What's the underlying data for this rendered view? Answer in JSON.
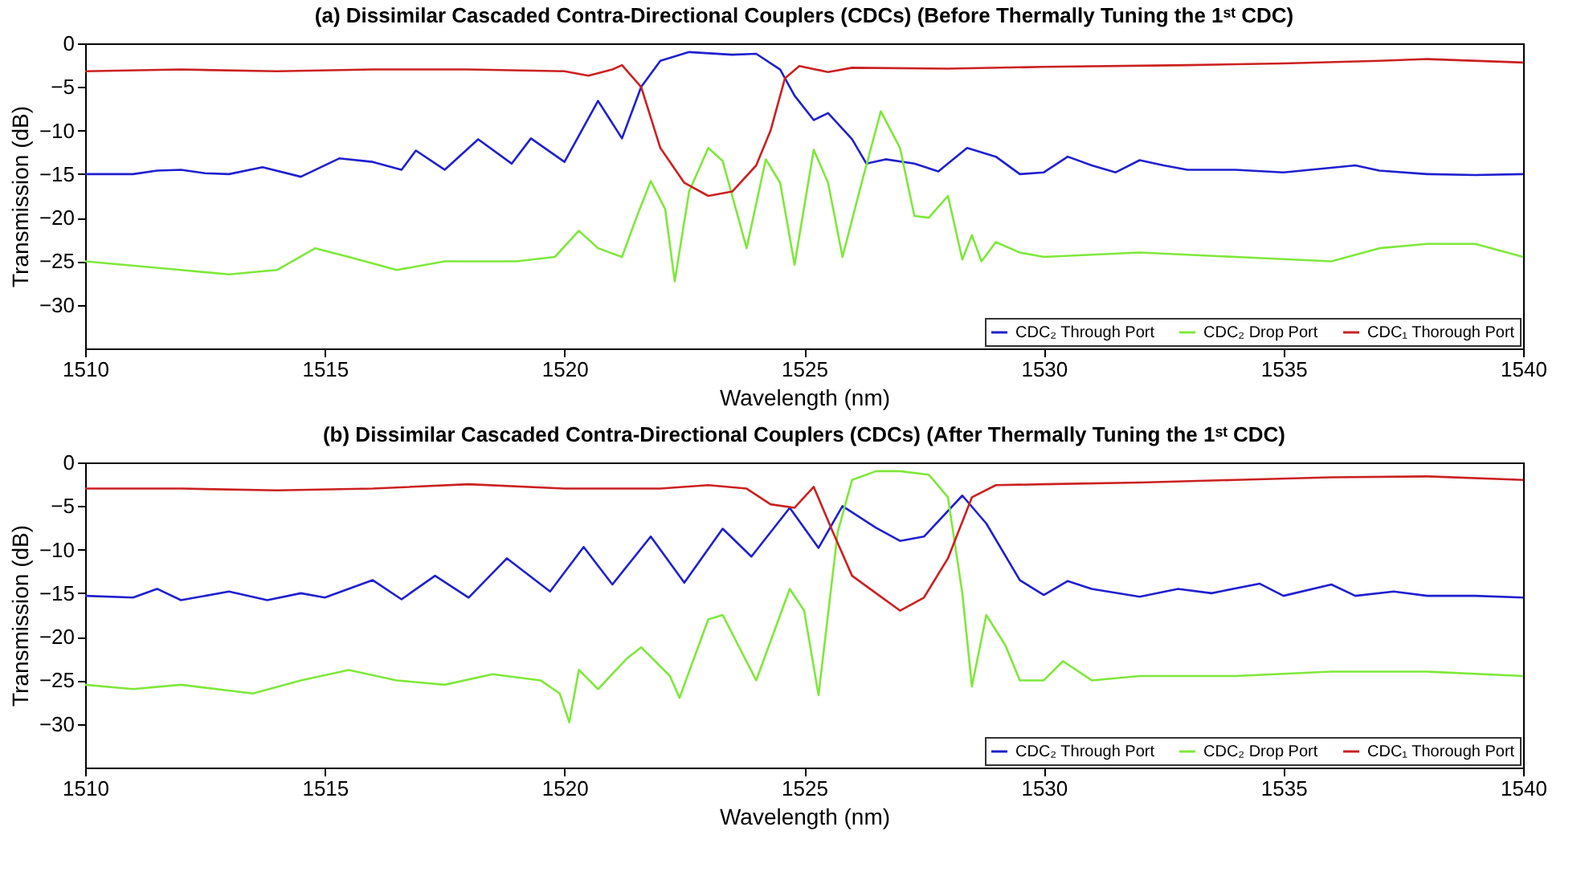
{
  "chart_data": [
    {
      "type": "line",
      "title": "(a) Dissimilar Cascaded Contra-Directional Couplers (CDCs) (Before Thermally Tuning the 1ˢᵗ CDC)",
      "xlabel": "Wavelength (nm)",
      "ylabel": "Transmission (dB)",
      "xlim": [
        1510,
        1540
      ],
      "xticks": [
        1510,
        1515,
        1520,
        1525,
        1530,
        1535,
        1540
      ],
      "ylim": [
        -35,
        0
      ],
      "yticks": [
        -30,
        -25,
        -20,
        -15,
        -10,
        -5,
        0
      ],
      "grid": false,
      "legend": "bottom right",
      "line_style": "solid",
      "marker": "none",
      "series": [
        {
          "name": "CDC₂ Through Port",
          "color": "#1f1fd0",
          "x": [
            1510,
            1511,
            1511.5,
            1512,
            1512.5,
            1513,
            1513.7,
            1514.5,
            1515.3,
            1516,
            1516.6,
            1516.9,
            1517.5,
            1518.2,
            1518.9,
            1519.3,
            1520,
            1520.7,
            1521.2,
            1521.6,
            1522,
            1522.6,
            1523.5,
            1524,
            1524.5,
            1524.8,
            1525.2,
            1525.5,
            1526,
            1526.3,
            1526.7,
            1527.3,
            1527.8,
            1528.4,
            1529,
            1529.5,
            1530,
            1530.5,
            1531,
            1531.5,
            1532,
            1532.5,
            1533,
            1534,
            1535,
            1536.5,
            1537,
            1538,
            1539,
            1540
          ],
          "values": [
            -15,
            -15,
            -14.6,
            -14.5,
            -14.9,
            -15,
            -14.2,
            -15.3,
            -13.2,
            -13.6,
            -14.5,
            -12.3,
            -14.5,
            -11,
            -13.8,
            -10.9,
            -13.6,
            -6.6,
            -10.9,
            -5,
            -2,
            -1,
            -1.3,
            -1.2,
            -3,
            -6,
            -8.8,
            -8,
            -11,
            -13.8,
            -13.3,
            -13.8,
            -14.7,
            -12,
            -13,
            -15,
            -14.8,
            -13,
            -14,
            -14.8,
            -13.4,
            -14,
            -14.5,
            -14.5,
            -14.8,
            -14,
            -14.6,
            -15,
            -15.1,
            -15
          ]
        },
        {
          "name": "CDC₂ Drop Port",
          "color": "#7ee83a",
          "x": [
            1510,
            1512,
            1513,
            1514,
            1514.8,
            1515.5,
            1516.5,
            1517.5,
            1519,
            1519.8,
            1520.3,
            1520.7,
            1521.2,
            1521.5,
            1521.8,
            1522.1,
            1522.3,
            1522.6,
            1523,
            1523.3,
            1523.8,
            1524.2,
            1524.5,
            1524.8,
            1525.2,
            1525.5,
            1525.8,
            1526.2,
            1526.6,
            1527,
            1527.3,
            1527.6,
            1528,
            1528.3,
            1528.5,
            1528.7,
            1529,
            1529.5,
            1530,
            1532,
            1534,
            1536,
            1537,
            1538,
            1539,
            1540
          ],
          "values": [
            -25,
            -26,
            -26.5,
            -26,
            -23.5,
            -24.5,
            -26,
            -25,
            -25,
            -24.5,
            -21.5,
            -23.5,
            -24.5,
            -20,
            -15.8,
            -19,
            -27.3,
            -17,
            -12,
            -13.5,
            -23.5,
            -13.3,
            -16,
            -25.4,
            -12.2,
            -16,
            -24.5,
            -16,
            -7.8,
            -12,
            -19.8,
            -20,
            -17.5,
            -24.8,
            -22,
            -25,
            -22.8,
            -24,
            -24.5,
            -24,
            -24.5,
            -25,
            -23.5,
            -23,
            -23,
            -24.5
          ]
        },
        {
          "name": "CDC₁ Thorough Port",
          "color": "#cc2020",
          "x": [
            1510,
            1512,
            1514,
            1516,
            1518,
            1520,
            1520.5,
            1521,
            1521.2,
            1521.6,
            1522,
            1522.5,
            1523,
            1523.5,
            1524,
            1524.3,
            1524.6,
            1524.9,
            1525.5,
            1526,
            1528,
            1530,
            1533,
            1535,
            1537,
            1538,
            1540
          ],
          "values": [
            -3.2,
            -3,
            -3.2,
            -3,
            -3,
            -3.2,
            -3.7,
            -3,
            -2.5,
            -5,
            -12,
            -16,
            -17.5,
            -17,
            -14,
            -10,
            -4,
            -2.6,
            -3.3,
            -2.8,
            -2.9,
            -2.7,
            -2.5,
            -2.3,
            -2,
            -1.8,
            -2.2
          ]
        }
      ]
    },
    {
      "type": "line",
      "title": "(b) Dissimilar Cascaded Contra-Directional Couplers (CDCs) (After Thermally Tuning the 1ˢᵗ CDC)",
      "xlabel": "Wavelength (nm)",
      "ylabel": "Transmission (dB)",
      "xlim": [
        1510,
        1540
      ],
      "xticks": [
        1510,
        1515,
        1520,
        1525,
        1530,
        1535,
        1540
      ],
      "ylim": [
        -35,
        0
      ],
      "yticks": [
        -30,
        -25,
        -20,
        -15,
        -10,
        -5,
        0
      ],
      "grid": false,
      "legend": "bottom right",
      "line_style": "solid",
      "marker": "none",
      "series": [
        {
          "name": "CDC₂ Through Port",
          "color": "#1f1fd0",
          "x": [
            1510,
            1511,
            1511.5,
            1512,
            1513,
            1513.8,
            1514.5,
            1515,
            1516,
            1516.6,
            1517.3,
            1518,
            1518.8,
            1519.7,
            1520.4,
            1521,
            1521.8,
            1522.5,
            1523.3,
            1523.9,
            1524.7,
            1525.3,
            1525.8,
            1526.5,
            1527,
            1527.5,
            1528.3,
            1528.8,
            1529.5,
            1530,
            1530.5,
            1531,
            1532,
            1532.8,
            1533.5,
            1534.5,
            1535,
            1536,
            1536.5,
            1537.3,
            1538,
            1539,
            1540
          ],
          "values": [
            -15.3,
            -15.5,
            -14.5,
            -15.8,
            -14.8,
            -15.8,
            -15,
            -15.5,
            -13.5,
            -15.7,
            -13,
            -15.5,
            -11,
            -14.8,
            -9.7,
            -14,
            -8.5,
            -13.8,
            -7.6,
            -10.8,
            -5.2,
            -9.8,
            -5,
            -7.5,
            -9,
            -8.5,
            -3.8,
            -7,
            -13.5,
            -15.2,
            -13.6,
            -14.5,
            -15.4,
            -14.5,
            -15,
            -13.9,
            -15.3,
            -14,
            -15.3,
            -14.8,
            -15.3,
            -15.3,
            -15.5
          ]
        },
        {
          "name": "CDC₂ Drop Port",
          "color": "#7ee83a",
          "x": [
            1510,
            1511,
            1512,
            1513.5,
            1514.5,
            1515.5,
            1516.5,
            1517.5,
            1518.5,
            1519.5,
            1519.9,
            1520.1,
            1520.3,
            1520.7,
            1521.3,
            1521.6,
            1522.2,
            1522.4,
            1523,
            1523.3,
            1524,
            1524.7,
            1525,
            1525.3,
            1525.7,
            1526,
            1526.5,
            1527,
            1527.6,
            1528,
            1528.3,
            1528.5,
            1528.8,
            1529.2,
            1529.5,
            1530,
            1530.4,
            1531,
            1532,
            1534,
            1536,
            1538,
            1540
          ],
          "values": [
            -25.5,
            -26,
            -25.5,
            -26.5,
            -25,
            -23.8,
            -25,
            -25.5,
            -24.3,
            -25,
            -26.5,
            -29.8,
            -23.8,
            -26,
            -22.5,
            -21.2,
            -24.5,
            -27,
            -18,
            -17.5,
            -25,
            -14.5,
            -17,
            -26.7,
            -8,
            -2,
            -1,
            -1,
            -1.4,
            -4,
            -15,
            -25.7,
            -17.5,
            -21,
            -25,
            -25,
            -22.8,
            -25,
            -24.5,
            -24.5,
            -24,
            -24,
            -24.5
          ]
        },
        {
          "name": "CDC₁ Thorough Port",
          "color": "#cc2020",
          "x": [
            1510,
            1512,
            1514,
            1516,
            1518,
            1520,
            1522,
            1523,
            1523.8,
            1524.3,
            1524.8,
            1525.2,
            1525.6,
            1526,
            1526.5,
            1527,
            1527.5,
            1528,
            1528.5,
            1529,
            1530,
            1532,
            1534,
            1536,
            1538,
            1540
          ],
          "values": [
            -3,
            -3,
            -3.2,
            -3,
            -2.5,
            -3,
            -3,
            -2.6,
            -3,
            -4.8,
            -5.2,
            -2.8,
            -8,
            -13,
            -15,
            -17,
            -15.5,
            -11,
            -4,
            -2.6,
            -2.5,
            -2.3,
            -2,
            -1.7,
            -1.6,
            -2
          ]
        }
      ]
    }
  ]
}
